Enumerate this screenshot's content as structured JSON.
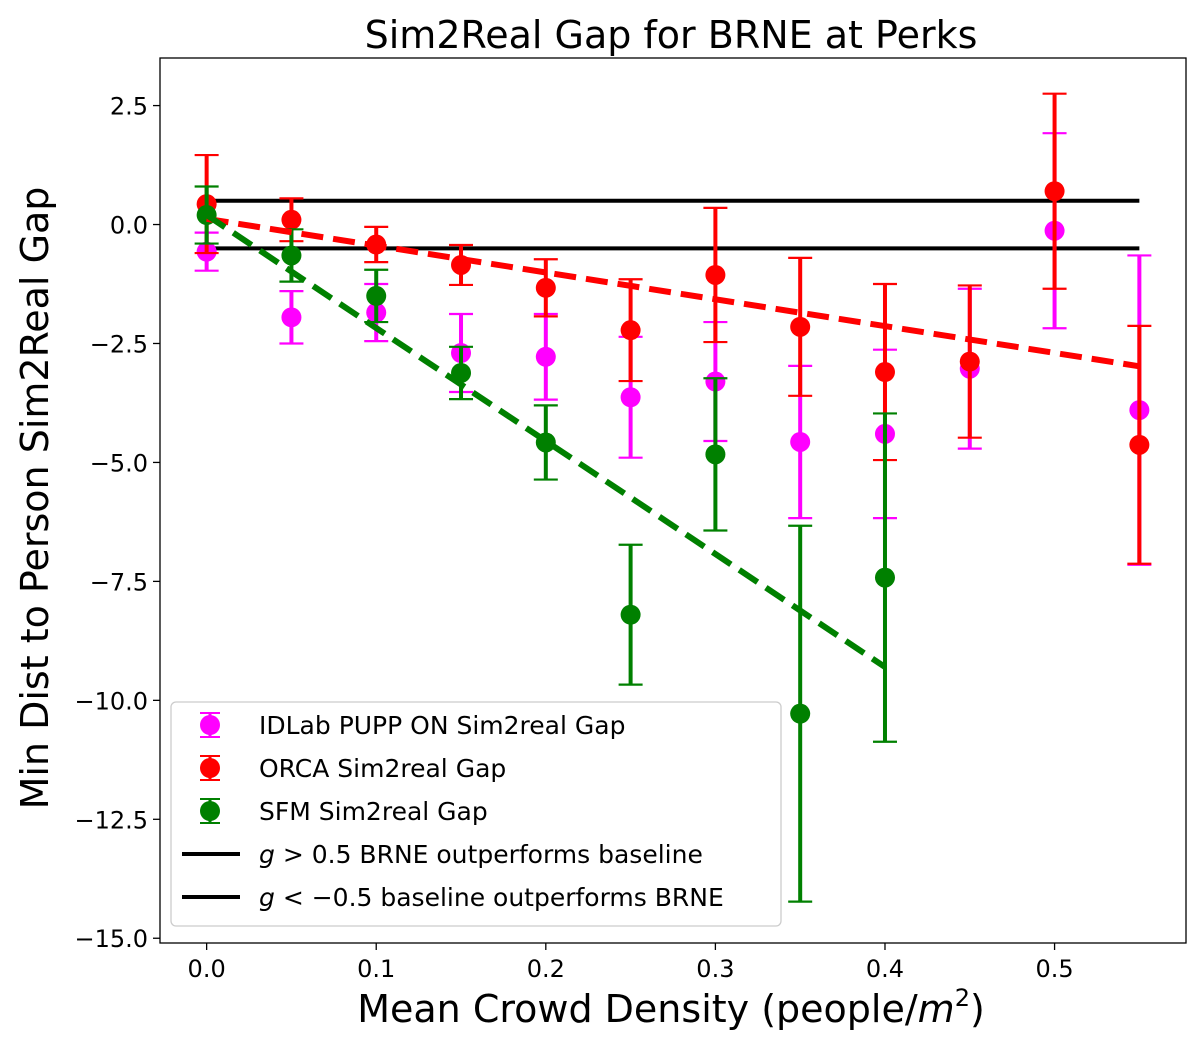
{
  "chart_data": {
    "type": "scatter",
    "title": "Sim2Real Gap for BRNE at Perks",
    "xlabel": "Mean Crowd Density (people/m²)",
    "xlabel_prefix": "Mean Crowd Density (people/",
    "xlabel_unit": "m",
    "xlabel_exp": "2",
    "xlabel_suffix": ")",
    "ylabel": "Min Dist to Person Sim2Real Gap",
    "xlim": [
      -0.0275,
      0.5775
    ],
    "ylim": [
      -15.1,
      3.5
    ],
    "x_ticks": [
      0.0,
      0.1,
      0.2,
      0.3,
      0.4,
      0.5
    ],
    "x_tick_labels": [
      "0.0",
      "0.1",
      "0.2",
      "0.3",
      "0.4",
      "0.5"
    ],
    "y_ticks": [
      2.5,
      0.0,
      -2.5,
      -5.0,
      -7.5,
      -10.0,
      -12.5,
      -15.0
    ],
    "y_tick_labels": [
      "2.5",
      "0.0",
      "−2.5",
      "−5.0",
      "−7.5",
      "−10.0",
      "−12.5",
      "−15.0"
    ],
    "grid": false,
    "legend_position": "lower-left",
    "series": [
      {
        "name": "IDLab PUPP ON Sim2real Gap",
        "color": "#ff00ff",
        "x": [
          0.0,
          0.05,
          0.1,
          0.15,
          0.2,
          0.25,
          0.3,
          0.35,
          0.4,
          0.45,
          0.5,
          0.55
        ],
        "y": [
          -0.57,
          -1.95,
          -1.85,
          -2.7,
          -2.78,
          -3.63,
          -3.3,
          -4.57,
          -4.4,
          -3.03,
          -0.13,
          -3.9
        ],
        "err": [
          0.4,
          0.55,
          0.6,
          0.82,
          0.9,
          1.27,
          1.25,
          1.6,
          1.77,
          1.68,
          2.05,
          3.25
        ]
      },
      {
        "name": "ORCA Sim2real Gap",
        "color": "#ff0000",
        "x": [
          0.0,
          0.05,
          0.1,
          0.15,
          0.2,
          0.25,
          0.3,
          0.35,
          0.4,
          0.45,
          0.5,
          0.55
        ],
        "y": [
          0.43,
          0.1,
          -0.42,
          -0.85,
          -1.33,
          -2.22,
          -1.06,
          -2.15,
          -3.1,
          -2.88,
          0.7,
          -4.63
        ],
        "err": [
          1.03,
          0.45,
          0.37,
          0.42,
          0.6,
          1.07,
          1.41,
          1.45,
          1.85,
          1.6,
          2.05,
          2.5
        ]
      },
      {
        "name": "SFM Sim2real Gap",
        "color": "#008000",
        "x": [
          0.0,
          0.05,
          0.1,
          0.15,
          0.2,
          0.25,
          0.3,
          0.35,
          0.4
        ],
        "y": [
          0.2,
          -0.65,
          -1.5,
          -3.12,
          -4.58,
          -8.2,
          -4.83,
          -10.28,
          -7.42
        ],
        "err": [
          0.6,
          0.55,
          0.55,
          0.55,
          0.78,
          1.47,
          1.6,
          3.95,
          3.45
        ]
      }
    ],
    "trend_lines": [
      {
        "color": "#ff0000",
        "x": [
          0.0,
          0.55
        ],
        "y": [
          0.12,
          -2.98
        ]
      },
      {
        "color": "#008000",
        "x": [
          0.0,
          0.4
        ],
        "y": [
          0.2,
          -9.3
        ]
      }
    ],
    "thresholds": [
      {
        "color": "#000000",
        "y": 0.5,
        "x": [
          0.0,
          0.55
        ]
      },
      {
        "color": "#000000",
        "y": -0.5,
        "x": [
          0.0,
          0.55
        ]
      }
    ],
    "legend": [
      {
        "kind": "marker",
        "color": "#ff00ff",
        "label": "IDLab PUPP ON Sim2real Gap"
      },
      {
        "kind": "marker",
        "color": "#ff0000",
        "label": "ORCA Sim2real Gap"
      },
      {
        "kind": "marker",
        "color": "#008000",
        "label": "SFM Sim2real Gap"
      },
      {
        "kind": "line",
        "color": "#000000",
        "var": "g",
        "op": " > ",
        "label": "0.5 BRNE outperforms baseline"
      },
      {
        "kind": "line",
        "color": "#000000",
        "var": "g",
        "op": " < ",
        "label": "−0.5 baseline outperforms BRNE"
      }
    ]
  }
}
